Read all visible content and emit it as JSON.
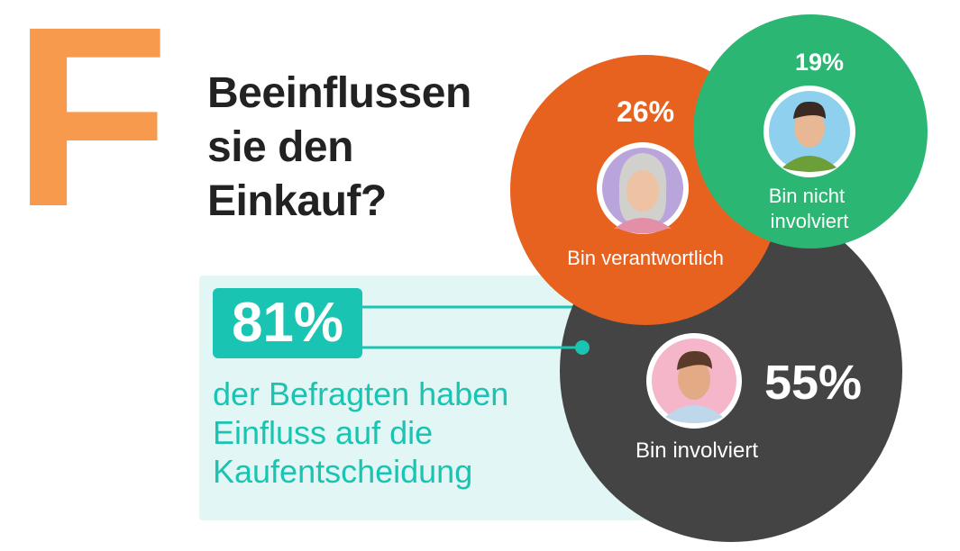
{
  "brand": {
    "letter": "F",
    "color": "#F89A4E"
  },
  "title_lines": [
    "Beeinflussen",
    "sie den",
    "Einkauf?"
  ],
  "summary": {
    "value": "81%",
    "description_lines": [
      "der Befragten haben",
      "Einfluss auf die",
      "Kaufentscheidung"
    ],
    "accent": "#19C4B2",
    "panel_color": "#E2F7F5"
  },
  "chart_data": {
    "type": "bubble",
    "title": "Beeinflussen sie den Einkauf?",
    "series": [
      {
        "name": "Bin verantwortlich",
        "value": 26,
        "label": "26%",
        "color": "#E8621F",
        "avatar_bg": "#B9A4DB",
        "avatar": "woman-avatar-icon"
      },
      {
        "name": "Bin nicht involviert",
        "value": 19,
        "label": "19%",
        "color": "#2BB673",
        "avatar_bg": "#8FD0EE",
        "avatar": "man-avatar-icon"
      },
      {
        "name": "Bin involviert",
        "value": 55,
        "label": "55%",
        "color": "#444444",
        "avatar_bg": "#F4B6C8",
        "avatar": "man-avatar-icon"
      }
    ]
  }
}
